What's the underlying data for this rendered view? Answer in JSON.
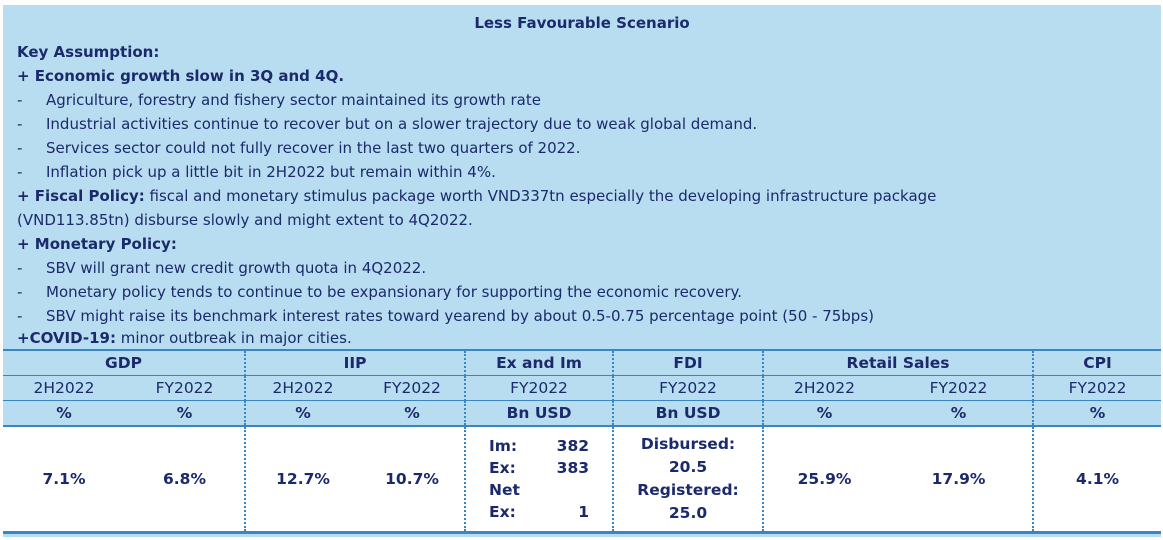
{
  "title": "Less Favourable Scenario",
  "key_assumption": "Key Assumption:",
  "growth_heading": "+ Economic growth slow in 3Q and 4Q.",
  "growth_bullets": [
    "Agriculture, forestry and fishery sector maintained its growth rate",
    "Industrial activities continue to recover but on a slower trajectory due to weak global demand.",
    "Services sector could not fully recover in the last two quarters of 2022.",
    "Inflation pick up a little bit in 2H2022 but remain within 4%."
  ],
  "fiscal": {
    "label": "+ Fiscal Policy:",
    "text1": " fiscal and monetary stimulus package worth VND337tn especially the developing infrastructure package",
    "text2": "(VND113.85tn) disburse slowly and might extent to 4Q2022."
  },
  "monetary_heading": "+ Monetary Policy:",
  "monetary_bullets": [
    "SBV will grant new credit growth quota in 4Q2022.",
    "Monetary policy tends to continue to be expansionary for supporting the economic recovery.",
    "SBV might raise its benchmark interest rates toward yearend by about 0.5-0.75 percentage point (50 - 75bps)"
  ],
  "covid": {
    "label": "+COVID-19:",
    "text": " minor outbreak in major cities."
  },
  "dash": "-",
  "table": {
    "groups": [
      "GDP",
      "IIP",
      "Ex and Im",
      "FDI",
      "Retail Sales",
      "CPI"
    ],
    "periods": [
      "2H2022",
      "FY2022",
      "2H2022",
      "FY2022",
      "FY2022",
      "FY2022",
      "2H2022",
      "FY2022",
      "FY2022"
    ],
    "units": [
      "%",
      "%",
      "%",
      "%",
      "Bn USD",
      "Bn USD",
      "%",
      "%",
      "%"
    ],
    "values": {
      "gdp_2h": "7.1%",
      "gdp_fy": "6.8%",
      "iip_2h": "12.7%",
      "iip_fy": "10.7%",
      "exim": {
        "im_label": "Im:",
        "im_value": "382",
        "ex_label": "Ex:",
        "ex_value": "383",
        "net_label": "Net Ex:",
        "net_value": "1"
      },
      "fdi": {
        "disbursed_label": "Disbursed:",
        "disbursed_value": "20.5",
        "registered_label": "Registered:",
        "registered_value": "25.0"
      },
      "retail_2h": "25.9%",
      "retail_fy": "17.9%",
      "cpi_fy": "4.1%"
    }
  }
}
